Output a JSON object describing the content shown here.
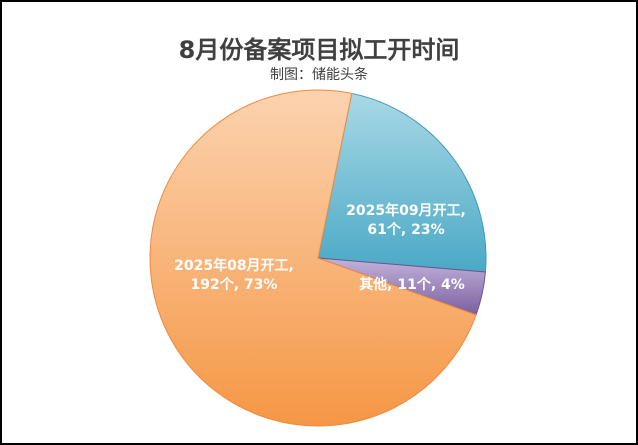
{
  "chart_data": {
    "type": "pie",
    "title": "8月份备案项目拟工开时间",
    "subtitle": "制图：储能头条",
    "slices": [
      {
        "label": "2025年09月开工",
        "value": 61,
        "percent": "23%",
        "count_label": "61个",
        "color_top": "#a9d8e6",
        "color_bottom": "#4aa9c6",
        "stroke": "#3f9bb8"
      },
      {
        "label": "其他",
        "value": 11,
        "percent": "4%",
        "count_label": "11个",
        "color_top": "#c3b3db",
        "color_bottom": "#7b5fa0",
        "stroke": "#6e5393"
      },
      {
        "label": "2025年08月开工",
        "value": 192,
        "percent": "73%",
        "count_label": "192个",
        "color_top": "#fcd3b0",
        "color_bottom": "#f59745",
        "stroke": "#f08a3a"
      }
    ]
  }
}
